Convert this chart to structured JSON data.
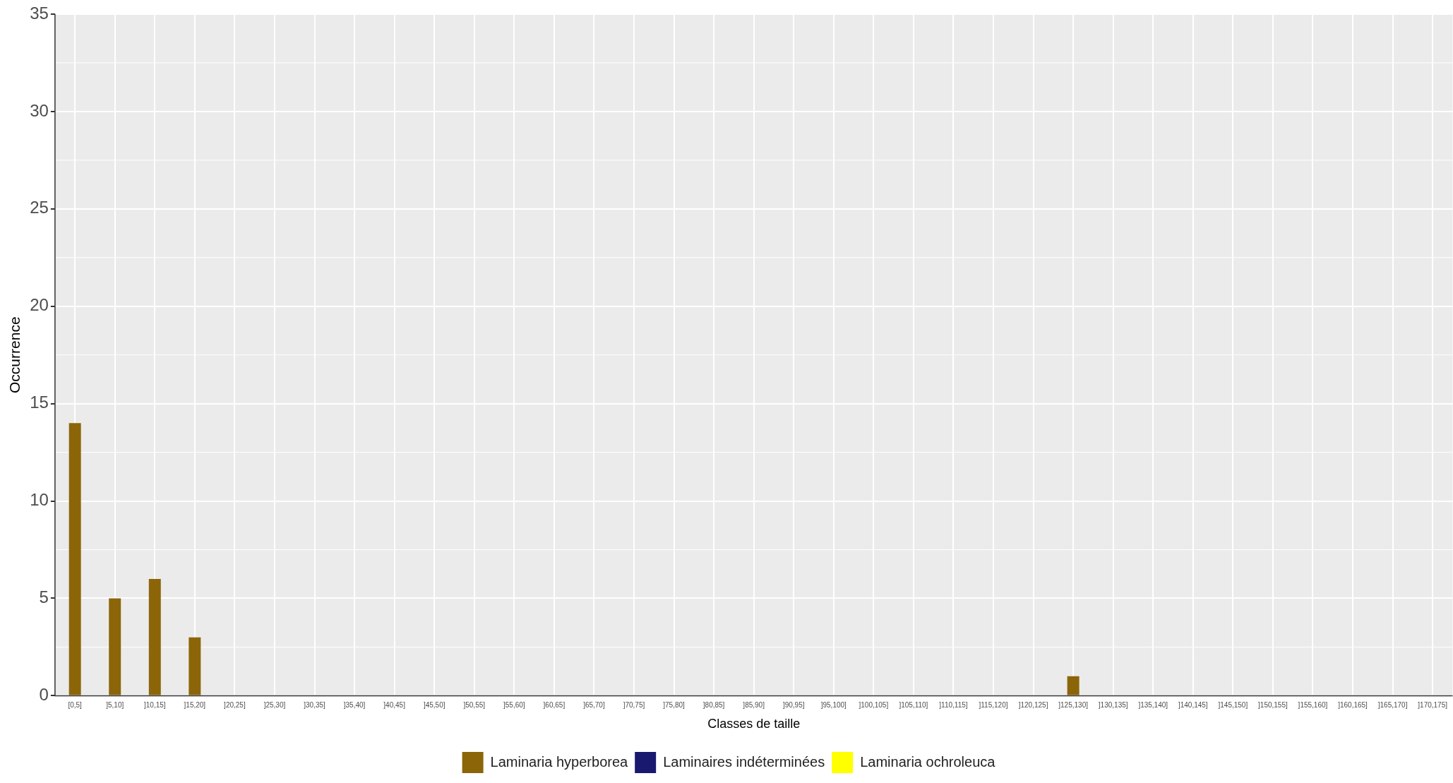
{
  "chart_data": {
    "type": "bar",
    "xlabel": "Classes de taille",
    "ylabel": "Occurrence",
    "categories": [
      "[0,5]",
      "]5,10]",
      "]10,15]",
      "]15,20]",
      "]20,25]",
      "]25,30]",
      "]30,35]",
      "]35,40]",
      "]40,45]",
      "]45,50]",
      "]50,55]",
      "]55,60]",
      "]60,65]",
      "]65,70]",
      "]70,75]",
      "]75,80]",
      "]80,85]",
      "]85,90]",
      "]90,95]",
      "]95,100]",
      "]100,105]",
      "]105,110]",
      "]110,115]",
      "]115,120]",
      "]120,125]",
      "]125,130]",
      "]130,135]",
      "]135,140]",
      "]140,145]",
      "]145,150]",
      "]150,155]",
      "]155,160]",
      "]160,165]",
      "]165,170]",
      "]170,175]"
    ],
    "series": [
      {
        "name": "Laminaria hyperborea",
        "color": "#8b6508",
        "values": [
          14,
          5,
          6,
          3,
          0,
          0,
          0,
          0,
          0,
          0,
          0,
          0,
          0,
          0,
          0,
          0,
          0,
          0,
          0,
          0,
          0,
          0,
          0,
          0,
          0,
          1,
          0,
          0,
          0,
          0,
          0,
          0,
          0,
          0,
          0
        ]
      },
      {
        "name": "Laminaires indéterminées",
        "color": "#191970",
        "values": [
          null,
          null,
          null,
          null,
          null,
          null,
          null,
          null,
          null,
          null,
          null,
          null,
          null,
          null,
          null,
          null,
          null,
          null,
          null,
          null,
          null,
          null,
          null,
          null,
          null,
          null,
          null,
          null,
          null,
          null,
          null,
          null,
          null,
          null,
          null
        ]
      },
      {
        "name": "Laminaria ochroleuca",
        "color": "#ffff00",
        "values": [
          null,
          null,
          null,
          null,
          null,
          null,
          null,
          null,
          null,
          null,
          null,
          null,
          null,
          null,
          null,
          null,
          null,
          null,
          null,
          null,
          null,
          null,
          null,
          null,
          null,
          null,
          null,
          null,
          null,
          null,
          null,
          null,
          null,
          null,
          null
        ]
      }
    ],
    "stacked": true,
    "ylim": [
      0,
      35
    ],
    "yticks": [
      0,
      5,
      10,
      15,
      20,
      25,
      30,
      35
    ],
    "grid": true,
    "legend": "bottom"
  }
}
